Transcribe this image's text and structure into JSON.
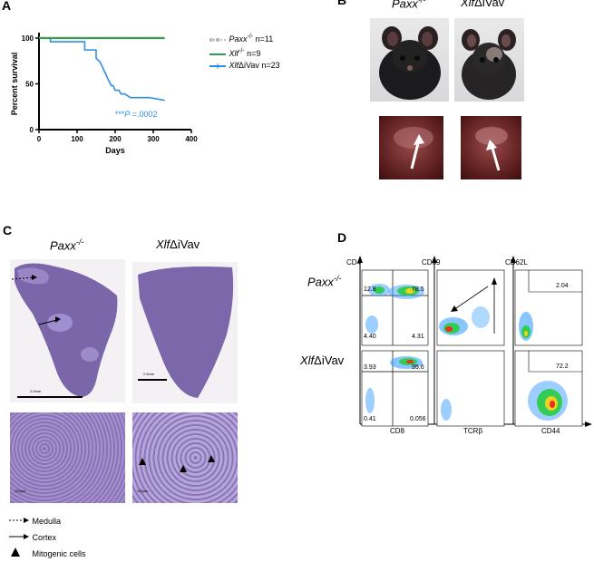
{
  "panels": {
    "a": "A",
    "b": "B",
    "c": "C",
    "d": "D"
  },
  "chart_data": {
    "type": "line",
    "title": "",
    "xlabel": "Days",
    "ylabel": "Percent survival",
    "xlim": [
      0,
      400
    ],
    "ylim": [
      0,
      100
    ],
    "xticks": [
      "0",
      "100",
      "200",
      "300",
      "400"
    ],
    "yticks": [
      "0",
      "50",
      "100"
    ],
    "series": [
      {
        "name": "Paxx-/- n=11",
        "legend_main": "Paxx",
        "legend_sup": "-/-",
        "legend_rest": " n=11",
        "color": "#aaaaaa",
        "x": [
          0,
          330
        ],
        "y": [
          100,
          100
        ]
      },
      {
        "name": "Xlf-/- n=9",
        "legend_main": "Xlf",
        "legend_sup": "-/-",
        "legend_rest": " n=9",
        "color": "#2e9a4a",
        "x": [
          0,
          330
        ],
        "y": [
          100,
          100
        ]
      },
      {
        "name": "XlfΔiVav n=23",
        "legend_main": "Xlf",
        "legend_sup": "",
        "legend_rest": "ΔiVav n=23",
        "color": "#2f8fe0",
        "x": [
          0,
          30,
          30,
          120,
          120,
          150,
          150,
          160,
          165,
          170,
          175,
          180,
          185,
          190,
          195,
          200,
          210,
          215,
          225,
          240,
          250,
          290,
          330
        ],
        "y": [
          100,
          100,
          96,
          96,
          87,
          87,
          78,
          74,
          70,
          65,
          61,
          56,
          52,
          48,
          48,
          43,
          43,
          39,
          39,
          35,
          35,
          35,
          32
        ]
      }
    ],
    "annotation": {
      "stars": "***",
      "p": "P",
      "value": " =.0002"
    }
  },
  "panel_b": {
    "label_left": "Paxx",
    "label_left_sup": "-/-",
    "label_right": "Xlf",
    "label_right_rest": "ΔiVav"
  },
  "panel_c": {
    "label_left": "Paxx",
    "label_left_sup": "-/-",
    "label_right": "Xlf",
    "label_right_rest": "ΔiVav",
    "scale_top_left": "2.0mm",
    "scale_top_right": "2.5mm",
    "scale_bottom_left": "100μm",
    "scale_bottom_right": "100μm",
    "legend": [
      {
        "symbol": "dashed-arrow",
        "label": "Medulla"
      },
      {
        "symbol": "solid-arrow",
        "label": "Cortex"
      },
      {
        "symbol": "triangle",
        "label": "Mitogenic cells"
      }
    ]
  },
  "panel_d": {
    "row1_main": "Paxx",
    "row1_sup": "-/-",
    "row2_main": "Xlf",
    "row2_rest": "ΔiVav",
    "col1_y": "CD4",
    "col1_x": "CD8",
    "col2_y": "CD69",
    "col2_x": "TCRβ",
    "col3_y": "CD62L",
    "col3_x": "CD44",
    "q1": {
      "ul": "12.8",
      "ur": "78.5",
      "ll": "4.40",
      "lr": "4.31"
    },
    "q2": {
      "ul": "3.93",
      "ur": "95.6",
      "ll": "0.41",
      "lr": "0.056"
    },
    "cd62l_r1": "2.04",
    "cd62l_r2": "72.2"
  }
}
